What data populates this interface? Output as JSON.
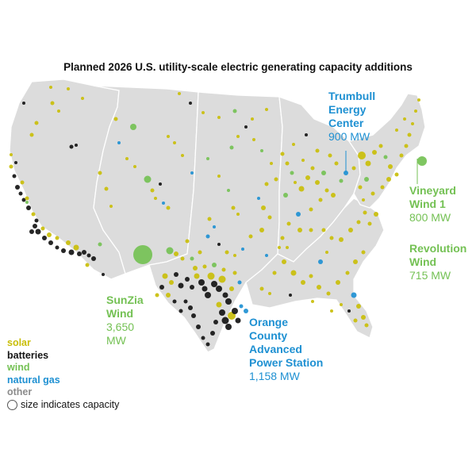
{
  "title": "Planned 2026 U.S. utility-scale electric generating capacity additions",
  "colors": {
    "solar": "#c9be09",
    "batteries": "#141414",
    "wind": "#74c154",
    "natural_gas": "#1e90d2",
    "other": "#8c8c8c",
    "land": "#dcdcdc",
    "borders": "#ffffff"
  },
  "legend": {
    "items": [
      {
        "key": "solar",
        "label": "solar"
      },
      {
        "key": "batteries",
        "label": "batteries"
      },
      {
        "key": "wind",
        "label": "wind"
      },
      {
        "key": "natural_gas",
        "label": "natural gas"
      },
      {
        "key": "other",
        "label": "other"
      }
    ],
    "size_note": "size indicates capacity"
  },
  "callouts": [
    {
      "id": "trumbull",
      "name_lines": [
        "Trumbull",
        "Energy",
        "Center"
      ],
      "capacity": "900 MW",
      "type": "natural_gas"
    },
    {
      "id": "vineyard",
      "name_lines": [
        "Vineyard",
        "Wind 1"
      ],
      "capacity": "800 MW",
      "type": "wind"
    },
    {
      "id": "revolution",
      "name_lines": [
        "Revolution",
        "Wind"
      ],
      "capacity": "715 MW",
      "type": "wind"
    },
    {
      "id": "sunzia",
      "name_lines": [
        "SunZia",
        "Wind"
      ],
      "capacity": "3,650 MW",
      "type": "wind"
    },
    {
      "id": "orange",
      "name_lines": [
        "Orange",
        "County",
        "Advanced",
        "Power Station"
      ],
      "capacity": "1,158 MW",
      "type": "natural_gas"
    }
  ]
}
